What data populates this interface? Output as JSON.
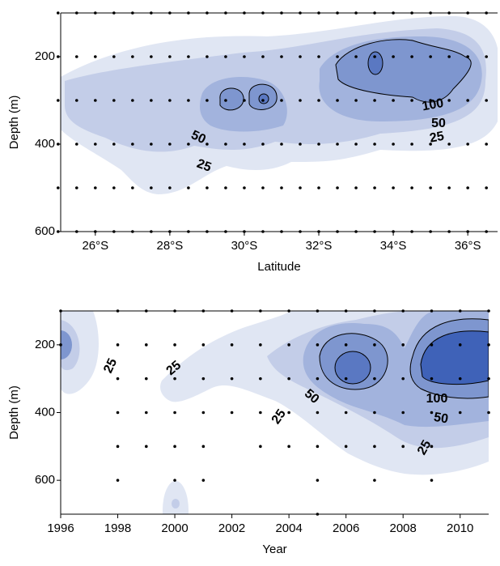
{
  "chart_data": [
    {
      "type": "contour",
      "x_label": "Latitude",
      "y_label": "Depth (m)",
      "xlim": [
        25.07,
        36.8
      ],
      "ylim": [
        100,
        600
      ],
      "y_inverted": true,
      "xticks": [
        {
          "value": 26,
          "label": "26°S"
        },
        {
          "value": 28,
          "label": "28°S"
        },
        {
          "value": 30,
          "label": "30°S"
        },
        {
          "value": 32,
          "label": "32°S"
        },
        {
          "value": 34,
          "label": "34°S"
        },
        {
          "value": 36,
          "label": "36°S"
        }
      ],
      "yticks": [
        200,
        400,
        600
      ],
      "station_x": [
        25,
        25.5,
        26,
        26.5,
        27,
        27.5,
        28,
        28.5,
        29,
        29.5,
        30,
        30.5,
        31,
        31.5,
        32,
        32.5,
        33,
        33.5,
        34,
        34.5,
        35,
        35.5,
        36,
        36.5
      ],
      "station_depths": [
        100,
        200,
        300,
        400,
        500,
        600
      ],
      "contour_labels": [
        "50",
        "25",
        "100",
        "50",
        "25"
      ]
    },
    {
      "type": "contour",
      "x_label": "Year",
      "y_label": "Depth (m)",
      "xlim": [
        1996,
        2011
      ],
      "ylim": [
        100,
        700
      ],
      "y_inverted": true,
      "xticks": [
        1996,
        1998,
        2000,
        2002,
        2004,
        2006,
        2008,
        2010
      ],
      "yticks": [
        200,
        400,
        600
      ],
      "stations": [
        {
          "x": 1996,
          "depths": [
            100,
            200
          ]
        },
        {
          "x": 1998,
          "depths": [
            100,
            200,
            300,
            400,
            500,
            600
          ]
        },
        {
          "x": 1999,
          "depths": [
            100,
            200,
            300,
            400,
            500
          ]
        },
        {
          "x": 2000,
          "depths": [
            100,
            200,
            300,
            400,
            500,
            600
          ]
        },
        {
          "x": 2001,
          "depths": [
            100,
            200,
            300,
            400,
            500,
            600
          ]
        },
        {
          "x": 2002,
          "depths": [
            100,
            200,
            300,
            400
          ]
        },
        {
          "x": 2003,
          "depths": [
            100,
            200,
            300,
            400,
            500
          ]
        },
        {
          "x": 2004,
          "depths": [
            100,
            200,
            300,
            400,
            500
          ]
        },
        {
          "x": 2005,
          "depths": [
            100,
            200,
            300,
            400,
            500,
            600,
            700
          ]
        },
        {
          "x": 2006,
          "depths": [
            100,
            200,
            300,
            400,
            500
          ]
        },
        {
          "x": 2007,
          "depths": [
            100,
            200,
            300,
            400,
            500,
            600
          ]
        },
        {
          "x": 2008,
          "depths": [
            100,
            200,
            300,
            400,
            500
          ]
        },
        {
          "x": 2009,
          "depths": [
            100,
            200,
            300,
            400,
            500,
            600
          ]
        },
        {
          "x": 2010,
          "depths": [
            100,
            200,
            300,
            400
          ]
        },
        {
          "x": 2011,
          "depths": [
            100,
            200,
            300,
            400
          ]
        }
      ],
      "contour_labels": [
        "25",
        "25",
        "50",
        "25",
        "100",
        "50",
        "25"
      ]
    }
  ]
}
